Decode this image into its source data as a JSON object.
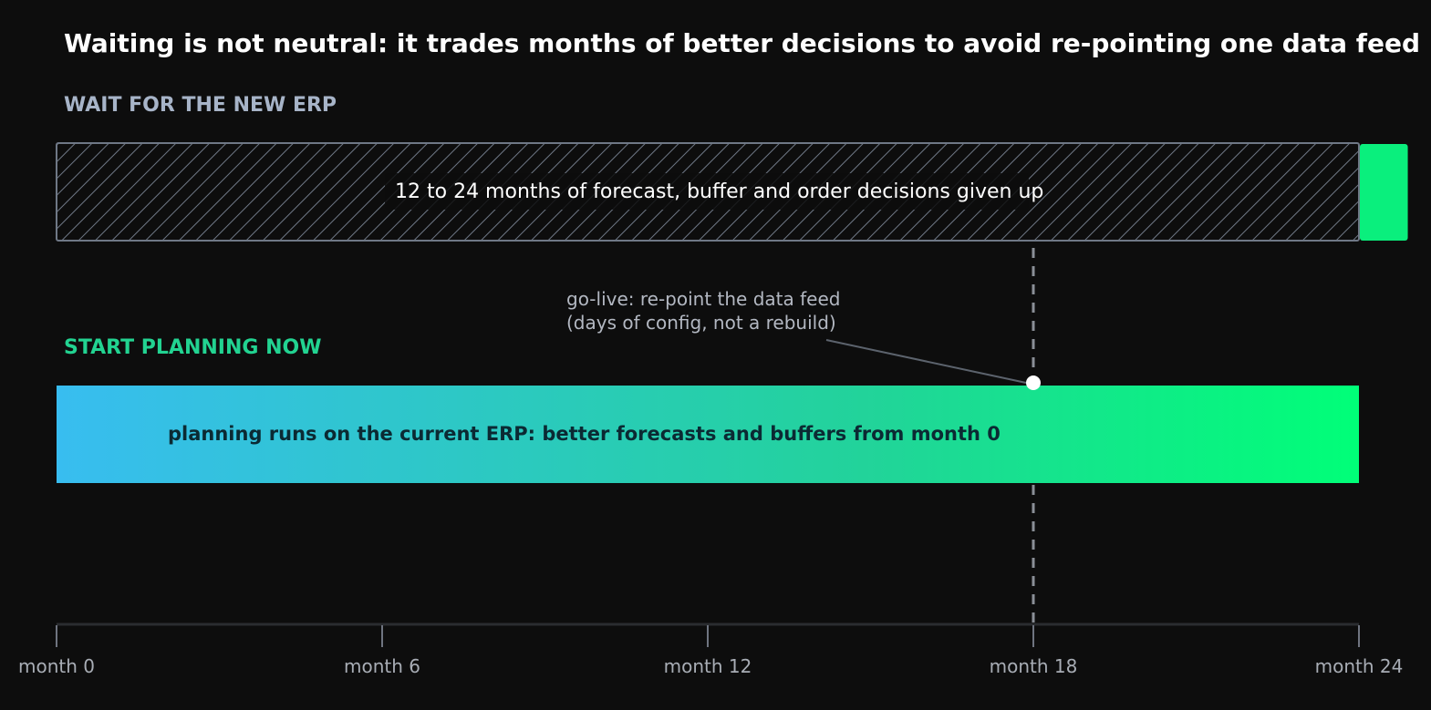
{
  "colors": {
    "background": "#0d0d0d",
    "title": "#ffffff",
    "wait_label": "#a7b4c8",
    "now_label": "#22d391",
    "hatch": "#6f7886",
    "erp_block": "#0aef7d",
    "gradient_start": "#38bdf0",
    "gradient_mid": "#22d39a",
    "gradient_end": "#00ff78",
    "golive_line": "#8a8f97",
    "axis": "#2a2c30",
    "tick": "#6f7480"
  },
  "chart_data": {
    "type": "timeline",
    "title": "Waiting is not neutral: it trades months of better decisions to avoid re-pointing one data feed",
    "x_unit": "month",
    "xlim": [
      0,
      24
    ],
    "ticks": [
      0,
      6,
      12,
      18,
      24
    ],
    "tick_labels": [
      "month 0",
      "month 6",
      "month 12",
      "month 18",
      "month 24"
    ],
    "rows": [
      {
        "name": "WAIT FOR THE NEW ERP",
        "bands": [
          {
            "kind": "hatched",
            "start": 0,
            "end": 24,
            "label": "12 to 24 months of forecast, buffer and order decisions given up"
          },
          {
            "kind": "solid",
            "start": 24,
            "end": 24.9,
            "label": ""
          }
        ]
      },
      {
        "name": "START PLANNING NOW",
        "bands": [
          {
            "kind": "gradient",
            "start": 0,
            "end": 24,
            "label": "planning runs on the current ERP: better forecasts and buffers from month 0"
          }
        ]
      }
    ],
    "marker": {
      "x": 18,
      "annotation": [
        "go-live: re-point the data feed",
        "(days of config, not a rebuild)"
      ]
    }
  }
}
